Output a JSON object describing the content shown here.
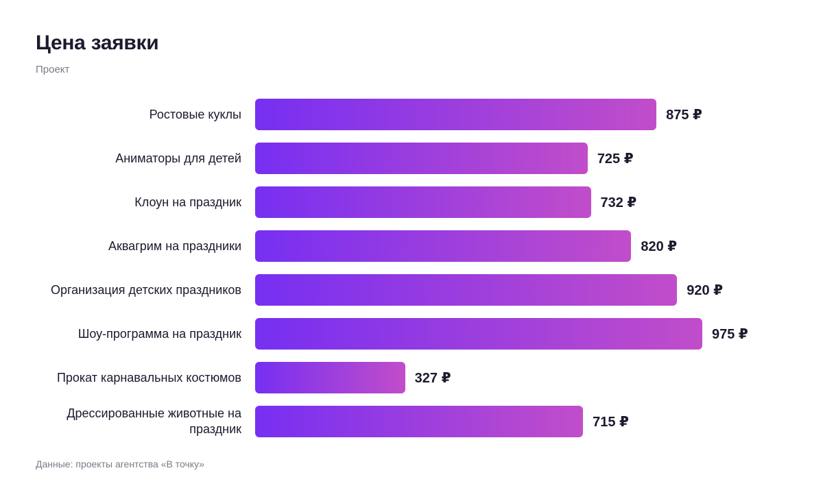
{
  "chart_data": {
    "type": "bar",
    "orientation": "horizontal",
    "title": "Цена заявки",
    "subtitle": "Проект",
    "categories": [
      "Ростовые куклы",
      "Аниматоры для детей",
      "Клоун на праздник",
      "Аквагрим на праздники",
      "Организация детских праздников",
      "Шоу-программа на праздник",
      "Прокат карнавальных костюмов",
      "Дрессированные животные на праздник"
    ],
    "values": [
      875,
      725,
      732,
      820,
      920,
      975,
      327,
      715
    ],
    "value_labels": [
      "875 ₽",
      "725 ₽",
      "732 ₽",
      "820 ₽",
      "920 ₽",
      "975 ₽",
      "327 ₽",
      "715 ₽"
    ],
    "colors": [
      "#772ff2",
      "#c14dca"
    ],
    "source": "Данные: проекты агентства «В точку»"
  }
}
